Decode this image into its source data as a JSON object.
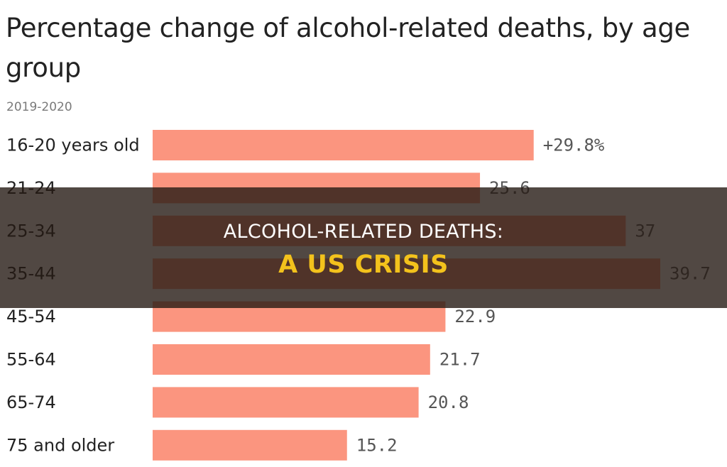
{
  "chart_data": {
    "type": "bar",
    "orientation": "horizontal",
    "title": "Percentage change of alcohol-related deaths, by age group",
    "subtitle": "2019-2020",
    "categories": [
      "16-20 years old",
      "21-24",
      "25-34",
      "35-44",
      "45-54",
      "55-64",
      "65-74",
      "75 and older"
    ],
    "values": [
      29.8,
      25.6,
      37,
      39.7,
      22.9,
      21.7,
      20.8,
      15.2
    ],
    "value_labels": [
      "+29.8%",
      "25.6",
      "37",
      "39.7",
      "22.9",
      "21.7",
      "20.8",
      "15.2"
    ],
    "xlim": [
      0,
      39.7
    ],
    "grid": false,
    "colors": {
      "bar": "#fb957f"
    }
  },
  "overlay": {
    "line1": "ALCOHOL-RELATED DEATHS:",
    "line2": "A US CRISIS",
    "text_color": "#ffffff",
    "accent_color": "#f3c21c"
  }
}
